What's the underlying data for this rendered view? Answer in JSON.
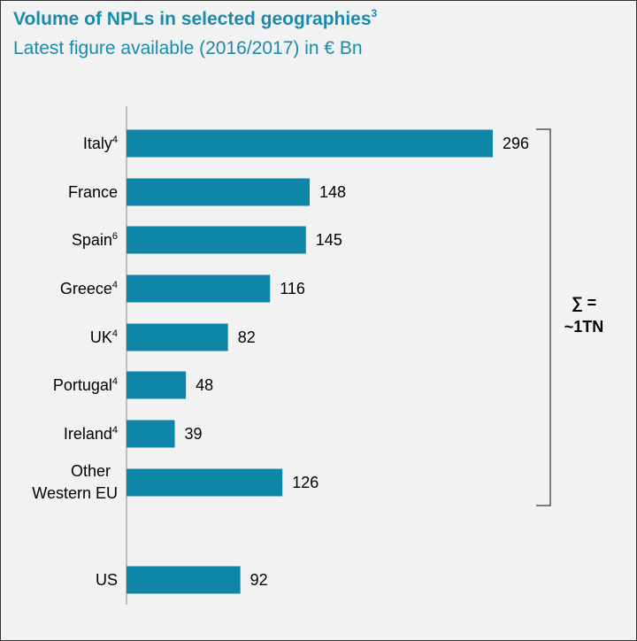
{
  "title": {
    "text": "Volume of NPLs in selected geographies",
    "superscript": "3",
    "subtitle": "Latest figure available (2016/2017) in € Bn"
  },
  "colors": {
    "bar": "#0f86a8",
    "title": "#1a8aad"
  },
  "bracket_label": {
    "line1": "∑ =",
    "line2": "~1TN"
  },
  "chart_data": {
    "type": "bar",
    "orientation": "horizontal",
    "title": "Volume of NPLs in selected geographies",
    "subtitle": "Latest figure available (2016/2017) in € Bn",
    "categories": [
      {
        "label": "Italy",
        "sup": "4"
      },
      {
        "label": "France",
        "sup": ""
      },
      {
        "label": "Spain",
        "sup": "6"
      },
      {
        "label": "Greece",
        "sup": "4"
      },
      {
        "label": "UK",
        "sup": "4"
      },
      {
        "label": "Portugal",
        "sup": "4"
      },
      {
        "label": "Ireland",
        "sup": "4"
      },
      {
        "label": [
          "Other",
          "Western EU"
        ],
        "sup": ""
      },
      {
        "label": "US",
        "sup": ""
      }
    ],
    "values": [
      296,
      148,
      145,
      116,
      82,
      48,
      39,
      126,
      92
    ],
    "grouping": "first eight categories bracketed together with ∑ = ~1TN",
    "xlim": [
      0,
      296
    ],
    "grid": false,
    "legend": "none",
    "xlabel": "",
    "ylabel": ""
  }
}
